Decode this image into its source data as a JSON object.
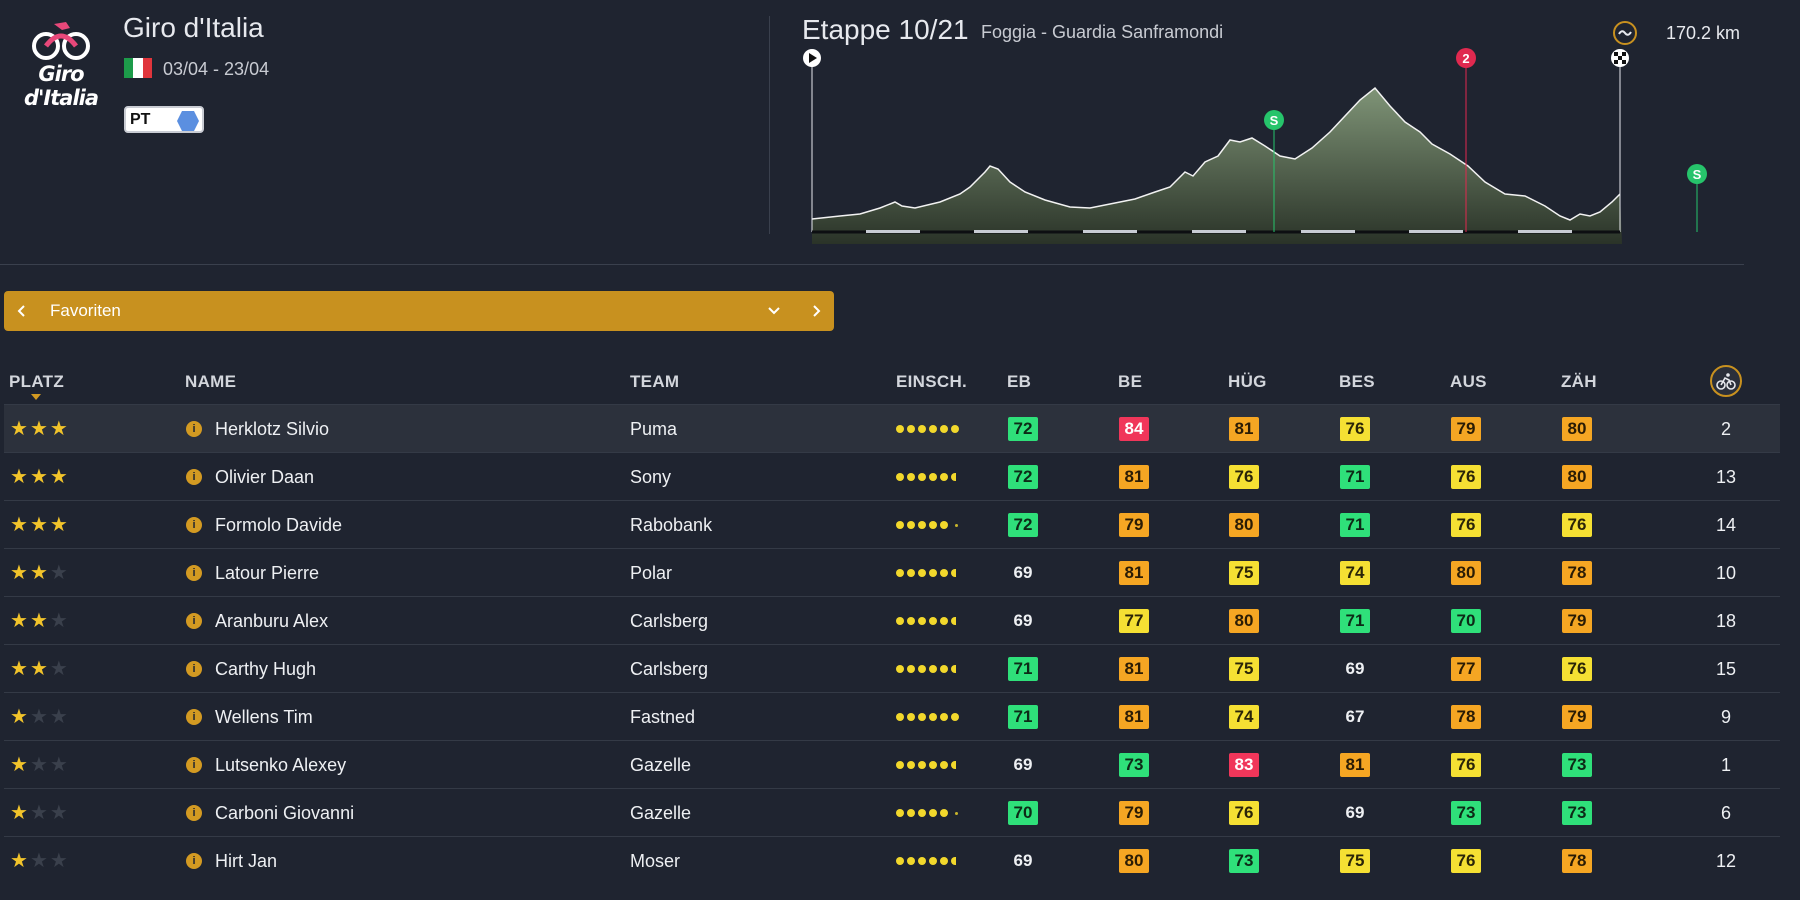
{
  "race": {
    "name": "Giro d'Italia",
    "logo_text": "Giro d'Italia",
    "dates": "03/04 - 23/04",
    "badge": "PT",
    "flag_colors": [
      "#1d9b4a",
      "#ffffff",
      "#e0353c"
    ]
  },
  "stage": {
    "title": "Etappe 10/21",
    "route": "Foggia - Guardia Sanframondi",
    "distance": "170.2 km",
    "markers": [
      {
        "type": "sprint",
        "label": "S",
        "color": "#26c46b"
      },
      {
        "type": "climb",
        "label": "2",
        "color": "#e0294f"
      },
      {
        "type": "sprint",
        "label": "S",
        "color": "#26c46b"
      }
    ]
  },
  "favbar": {
    "label": "Favoriten",
    "color": "#c8911f"
  },
  "table": {
    "headers": {
      "platz": "PLATZ",
      "name": "NAME",
      "team": "TEAM",
      "einsch": "EINSCH.",
      "eb": "EB",
      "be": "BE",
      "hug": "HÜG",
      "bes": "BES",
      "aus": "AUS",
      "zah": "ZÄH"
    },
    "rows": [
      {
        "stars": 3,
        "name": "Herklotz Silvio",
        "team": "Puma",
        "dots": "full6",
        "stats": [
          [
            "72",
            "green"
          ],
          [
            "84",
            "red"
          ],
          [
            "81",
            "orange"
          ],
          [
            "76",
            "yellow"
          ],
          [
            "79",
            "orange"
          ],
          [
            "80",
            "orange"
          ]
        ],
        "num": "2"
      },
      {
        "stars": 3,
        "name": "Olivier Daan",
        "team": "Sony",
        "dots": "half6",
        "stats": [
          [
            "72",
            "green"
          ],
          [
            "81",
            "orange"
          ],
          [
            "76",
            "yellow"
          ],
          [
            "71",
            "green"
          ],
          [
            "76",
            "yellow"
          ],
          [
            "80",
            "orange"
          ]
        ],
        "num": "13"
      },
      {
        "stars": 3,
        "name": "Formolo Davide",
        "team": "Rabobank",
        "dots": "five",
        "stats": [
          [
            "72",
            "green"
          ],
          [
            "79",
            "orange"
          ],
          [
            "80",
            "orange"
          ],
          [
            "71",
            "green"
          ],
          [
            "76",
            "yellow"
          ],
          [
            "76",
            "yellow"
          ]
        ],
        "num": "14"
      },
      {
        "stars": 2,
        "name": "Latour Pierre",
        "team": "Polar",
        "dots": "half6",
        "stats": [
          [
            "69",
            "plain"
          ],
          [
            "81",
            "orange"
          ],
          [
            "75",
            "yellow"
          ],
          [
            "74",
            "yellow"
          ],
          [
            "80",
            "orange"
          ],
          [
            "78",
            "orange"
          ]
        ],
        "num": "10"
      },
      {
        "stars": 2,
        "name": "Aranburu Alex",
        "team": "Carlsberg",
        "dots": "half6",
        "stats": [
          [
            "69",
            "plain"
          ],
          [
            "77",
            "yellow"
          ],
          [
            "80",
            "orange"
          ],
          [
            "71",
            "green"
          ],
          [
            "70",
            "green"
          ],
          [
            "79",
            "orange"
          ]
        ],
        "num": "18"
      },
      {
        "stars": 2,
        "name": "Carthy Hugh",
        "team": "Carlsberg",
        "dots": "half6",
        "stats": [
          [
            "71",
            "green"
          ],
          [
            "81",
            "orange"
          ],
          [
            "75",
            "yellow"
          ],
          [
            "69",
            "plain"
          ],
          [
            "77",
            "orange"
          ],
          [
            "76",
            "yellow"
          ]
        ],
        "num": "15"
      },
      {
        "stars": 1,
        "name": "Wellens Tim",
        "team": "Fastned",
        "dots": "full6",
        "stats": [
          [
            "71",
            "green"
          ],
          [
            "81",
            "orange"
          ],
          [
            "74",
            "yellow"
          ],
          [
            "67",
            "plain"
          ],
          [
            "78",
            "orange"
          ],
          [
            "79",
            "orange"
          ]
        ],
        "num": "9"
      },
      {
        "stars": 1,
        "name": "Lutsenko Alexey",
        "team": "Gazelle",
        "dots": "half6",
        "stats": [
          [
            "69",
            "plain"
          ],
          [
            "73",
            "green"
          ],
          [
            "83",
            "red"
          ],
          [
            "81",
            "orange"
          ],
          [
            "76",
            "yellow"
          ],
          [
            "73",
            "green"
          ]
        ],
        "num": "1"
      },
      {
        "stars": 1,
        "name": "Carboni Giovanni",
        "team": "Gazelle",
        "dots": "five",
        "stats": [
          [
            "70",
            "green"
          ],
          [
            "79",
            "orange"
          ],
          [
            "76",
            "yellow"
          ],
          [
            "69",
            "plain"
          ],
          [
            "73",
            "green"
          ],
          [
            "73",
            "green"
          ]
        ],
        "num": "6"
      },
      {
        "stars": 1,
        "name": "Hirt Jan",
        "team": "Moser",
        "dots": "half6",
        "stats": [
          [
            "69",
            "plain"
          ],
          [
            "80",
            "orange"
          ],
          [
            "73",
            "green"
          ],
          [
            "75",
            "yellow"
          ],
          [
            "76",
            "yellow"
          ],
          [
            "78",
            "orange"
          ]
        ],
        "num": "12"
      }
    ]
  },
  "colors": {
    "background": "#1f2430",
    "green": "#2fe07a",
    "yellow": "#f5e033",
    "orange": "#f5a623",
    "red": "#f0365a",
    "star": "#f2c42b"
  }
}
